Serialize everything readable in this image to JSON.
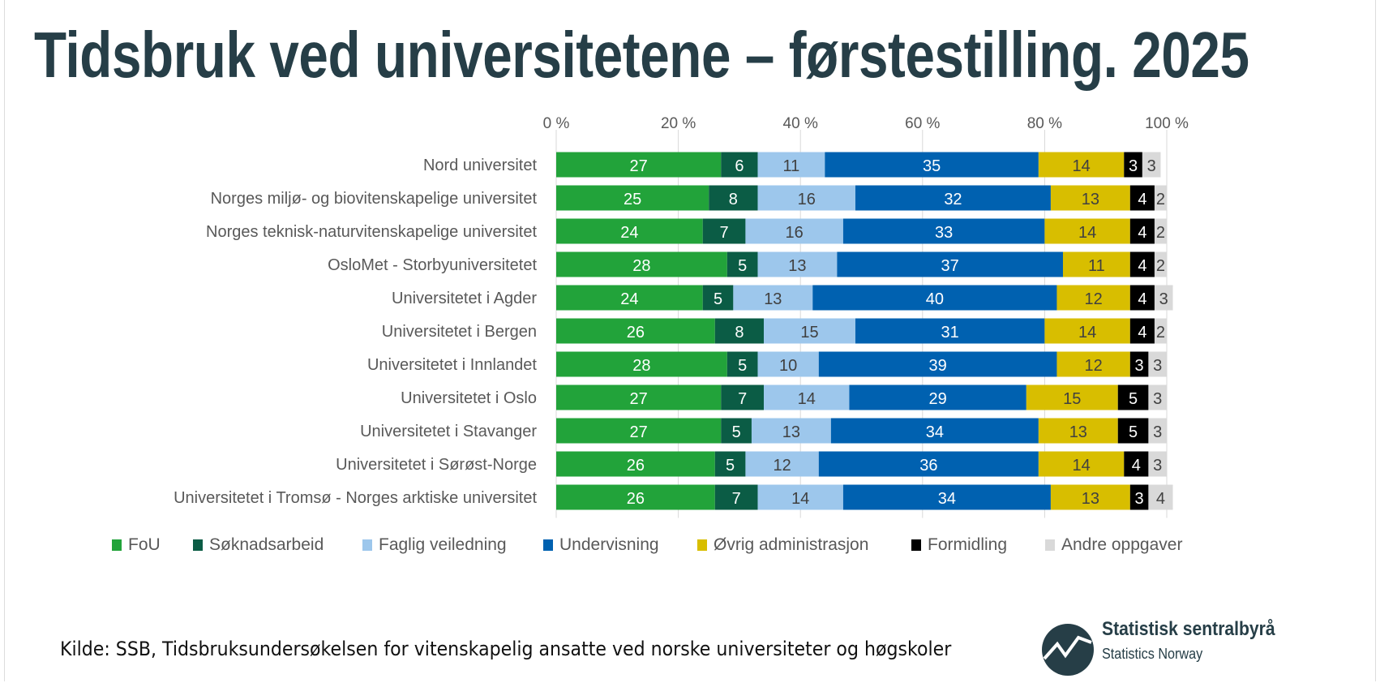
{
  "title": "Tidsbruk ved universitetene – førstestilling. 2025",
  "source": "Kilde: SSB, Tidsbruksundersøkelsen for vitenskapelig ansatte ved norske universiteter og høgskoler",
  "logo": {
    "name": "Statistisk sentralbyrå",
    "subtitle": "Statistics Norway"
  },
  "chart_data": {
    "type": "bar",
    "orientation": "horizontal",
    "stacked": "percent",
    "xlim": [
      0,
      100
    ],
    "x_ticks": [
      "0 %",
      "20 %",
      "40 %",
      "60 %",
      "80 %",
      "100 %"
    ],
    "x_tick_values": [
      0,
      20,
      40,
      60,
      80,
      100
    ],
    "x_axis_position": "top",
    "grid": true,
    "legend": "bottom",
    "categories": [
      "Nord universitet",
      "Norges miljø- og biovitenskapelige universitet",
      "Norges teknisk-naturvitenskapelige universitet",
      "OsloMet - Storbyuniversitetet",
      "Universitetet i Agder",
      "Universitetet i Bergen",
      "Universitetet i Innlandet",
      "Universitetet i Oslo",
      "Universitetet i Stavanger",
      "Universitetet i Sørøst-Norge",
      "Universitetet i Tromsø - Norges arktiske universitet"
    ],
    "series": [
      {
        "name": "FoU",
        "color": "#22a33a",
        "label_color": "#ffffff",
        "values": [
          27,
          25,
          24,
          28,
          24,
          26,
          28,
          27,
          27,
          26,
          26
        ]
      },
      {
        "name": "Søknadsarbeid",
        "color": "#0b5c45",
        "label_color": "#ffffff",
        "values": [
          6,
          8,
          7,
          5,
          5,
          8,
          5,
          7,
          5,
          5,
          7
        ]
      },
      {
        "name": "Faglig veiledning",
        "color": "#9dc7ec",
        "label_color": "#404040",
        "values": [
          11,
          16,
          16,
          13,
          13,
          15,
          10,
          14,
          13,
          12,
          14
        ]
      },
      {
        "name": "Undervisning",
        "color": "#0061b0",
        "label_color": "#ffffff",
        "values": [
          35,
          32,
          33,
          37,
          40,
          31,
          39,
          29,
          34,
          36,
          34
        ]
      },
      {
        "name": "Øvrig administrasjon",
        "color": "#d8be00",
        "label_color": "#404040",
        "values": [
          14,
          13,
          14,
          11,
          12,
          14,
          12,
          15,
          13,
          14,
          13
        ]
      },
      {
        "name": "Formidling",
        "color": "#000000",
        "label_color": "#ffffff",
        "values": [
          3,
          4,
          4,
          4,
          4,
          4,
          3,
          5,
          5,
          4,
          3
        ]
      },
      {
        "name": "Andre oppgaver",
        "color": "#d9d9d9",
        "label_color": "#404040",
        "values": [
          3,
          2,
          2,
          2,
          3,
          2,
          3,
          3,
          3,
          3,
          4
        ]
      }
    ]
  }
}
